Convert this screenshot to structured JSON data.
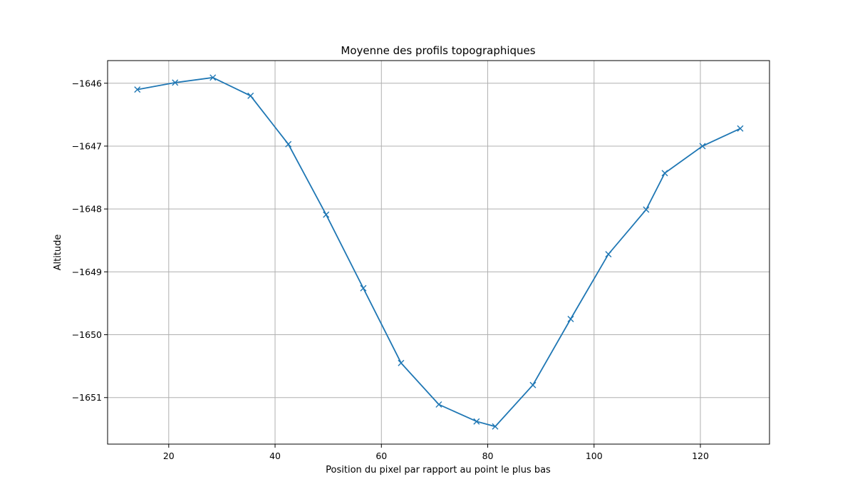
{
  "chart_data": {
    "type": "line",
    "title": "Moyenne des profils topographiques",
    "xlabel": "Position du pixel par rapport au point le plus bas",
    "ylabel": "Altitude",
    "xlim": [
      8.5,
      133
    ],
    "ylim": [
      -1651.74,
      -1645.64
    ],
    "grid": true,
    "x_ticks": [
      20,
      40,
      60,
      80,
      100,
      120
    ],
    "y_ticks": [
      -1646,
      -1647,
      -1648,
      -1649,
      -1650,
      -1651
    ],
    "x_tick_labels": [
      "20",
      "40",
      "60",
      "80",
      "100",
      "120"
    ],
    "y_tick_labels": [
      "−1646",
      "−1647",
      "−1648",
      "−1649",
      "−1650",
      "−1651"
    ],
    "series": [
      {
        "color": "#1f77b4",
        "marker": "x",
        "x": [
          14.1,
          21.2,
          28.3,
          35.4,
          42.5,
          49.6,
          56.6,
          63.7,
          70.8,
          77.9,
          81.4,
          88.5,
          95.6,
          102.7,
          109.8,
          113.3,
          120.4,
          127.5
        ],
        "y": [
          -1646.1,
          -1645.99,
          -1645.91,
          -1646.2,
          -1646.97,
          -1648.09,
          -1649.26,
          -1650.45,
          -1651.11,
          -1651.38,
          -1651.46,
          -1650.8,
          -1649.75,
          -1648.72,
          -1648.01,
          -1647.43,
          -1647.0,
          -1646.72
        ]
      }
    ]
  }
}
